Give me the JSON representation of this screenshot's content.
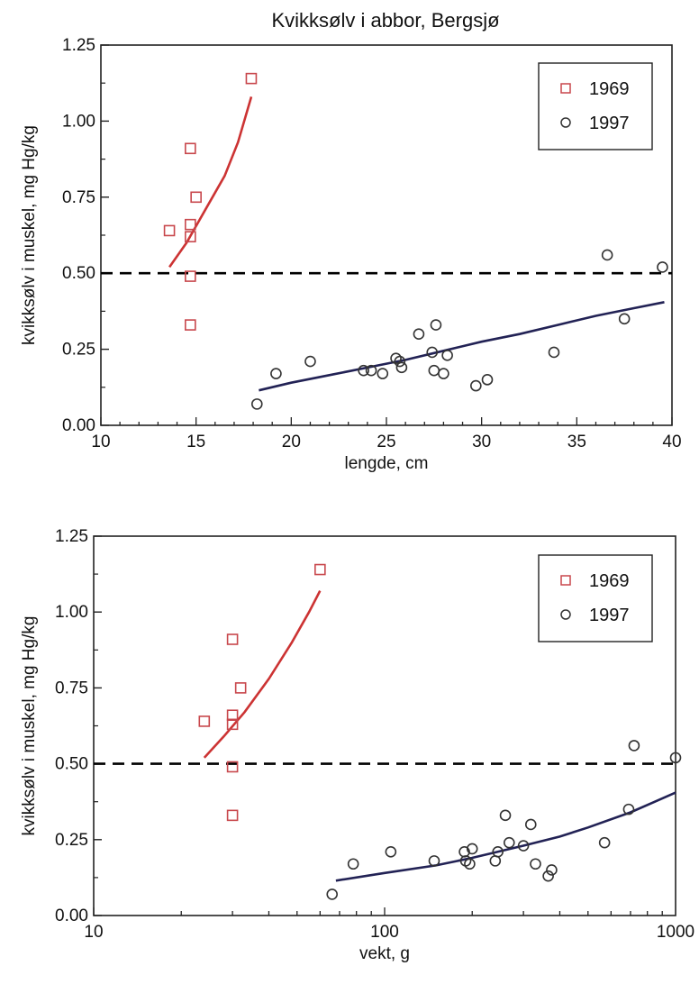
{
  "title": "Kvikksølv  i abbor, Bergsjø",
  "colors": {
    "s1969": "#c8474c",
    "s1997": "#333333",
    "fit1969": "#cc3333",
    "fit1997": "#222255",
    "ref": "#000000"
  },
  "chart_data": [
    {
      "type": "scatter",
      "xlabel": "lengde, cm",
      "ylabel": "kvikksølv i muskel, mg Hg/kg",
      "xlim": [
        10,
        40
      ],
      "ylim": [
        0.0,
        1.25
      ],
      "x_ticks": [
        10,
        15,
        20,
        25,
        30,
        35,
        40
      ],
      "y_ticks": [
        "0.00",
        "0.25",
        "0.50",
        "0.75",
        "1.00",
        "1.25"
      ],
      "reference_line": 0.5,
      "legend_position": "top-right",
      "series": [
        {
          "name": "1969",
          "marker": "square",
          "points": [
            [
              13.6,
              0.64
            ],
            [
              14.7,
              0.91
            ],
            [
              14.7,
              0.66
            ],
            [
              14.7,
              0.62
            ],
            [
              14.7,
              0.49
            ],
            [
              14.7,
              0.33
            ],
            [
              15.0,
              0.75
            ],
            [
              17.9,
              1.14
            ]
          ],
          "fit": [
            [
              13.6,
              0.52
            ],
            [
              14.5,
              0.6
            ],
            [
              15.5,
              0.71
            ],
            [
              16.5,
              0.82
            ],
            [
              17.2,
              0.93
            ],
            [
              17.9,
              1.08
            ]
          ]
        },
        {
          "name": "1997",
          "marker": "circle",
          "points": [
            [
              18.2,
              0.07
            ],
            [
              19.2,
              0.17
            ],
            [
              21.0,
              0.21
            ],
            [
              23.8,
              0.18
            ],
            [
              24.2,
              0.18
            ],
            [
              24.8,
              0.17
            ],
            [
              25.5,
              0.22
            ],
            [
              25.7,
              0.21
            ],
            [
              25.8,
              0.19
            ],
            [
              26.7,
              0.3
            ],
            [
              27.4,
              0.24
            ],
            [
              27.5,
              0.18
            ],
            [
              27.6,
              0.33
            ],
            [
              28.0,
              0.17
            ],
            [
              28.2,
              0.23
            ],
            [
              29.7,
              0.13
            ],
            [
              30.3,
              0.15
            ],
            [
              33.8,
              0.24
            ],
            [
              36.6,
              0.56
            ],
            [
              37.5,
              0.35
            ],
            [
              39.5,
              0.52
            ]
          ],
          "fit": [
            [
              18.3,
              0.115
            ],
            [
              20,
              0.14
            ],
            [
              22,
              0.165
            ],
            [
              24,
              0.19
            ],
            [
              26,
              0.215
            ],
            [
              28,
              0.245
            ],
            [
              30,
              0.275
            ],
            [
              32,
              0.3
            ],
            [
              34,
              0.33
            ],
            [
              36,
              0.36
            ],
            [
              38,
              0.385
            ],
            [
              39.6,
              0.405
            ]
          ]
        }
      ]
    },
    {
      "type": "scatter",
      "xlabel": "vekt, g",
      "ylabel": "kvikksølv i muskel, mg Hg/kg",
      "xscale": "log",
      "xlim": [
        10,
        1000
      ],
      "ylim": [
        0.0,
        1.25
      ],
      "x_ticks": [
        10,
        100,
        1000
      ],
      "y_ticks": [
        "0.00",
        "0.25",
        "0.50",
        "0.75",
        "1.00",
        "1.25"
      ],
      "reference_line": 0.5,
      "legend_position": "top-right",
      "series": [
        {
          "name": "1969",
          "marker": "square",
          "points": [
            [
              24,
              0.64
            ],
            [
              30,
              0.91
            ],
            [
              30,
              0.66
            ],
            [
              30,
              0.63
            ],
            [
              30,
              0.49
            ],
            [
              30,
              0.33
            ],
            [
              32,
              0.75
            ],
            [
              60,
              1.14
            ]
          ],
          "fit": [
            [
              24,
              0.52
            ],
            [
              28,
              0.59
            ],
            [
              33,
              0.67
            ],
            [
              40,
              0.78
            ],
            [
              48,
              0.9
            ],
            [
              55,
              1.0
            ],
            [
              60,
              1.07
            ]
          ]
        },
        {
          "name": "1997",
          "marker": "circle",
          "points": [
            [
              66,
              0.07
            ],
            [
              78,
              0.17
            ],
            [
              105,
              0.21
            ],
            [
              148,
              0.18
            ],
            [
              188,
              0.21
            ],
            [
              190,
              0.18
            ],
            [
              196,
              0.17
            ],
            [
              200,
              0.22
            ],
            [
              240,
              0.18
            ],
            [
              245,
              0.21
            ],
            [
              260,
              0.33
            ],
            [
              268,
              0.24
            ],
            [
              300,
              0.23
            ],
            [
              318,
              0.3
            ],
            [
              330,
              0.17
            ],
            [
              365,
              0.13
            ],
            [
              375,
              0.15
            ],
            [
              570,
              0.24
            ],
            [
              690,
              0.35
            ],
            [
              720,
              0.56
            ],
            [
              1000,
              0.52
            ]
          ],
          "fit": [
            [
              68,
              0.115
            ],
            [
              100,
              0.14
            ],
            [
              150,
              0.165
            ],
            [
              200,
              0.19
            ],
            [
              300,
              0.23
            ],
            [
              400,
              0.26
            ],
            [
              500,
              0.29
            ],
            [
              700,
              0.34
            ],
            [
              1000,
              0.405
            ]
          ]
        }
      ]
    }
  ]
}
